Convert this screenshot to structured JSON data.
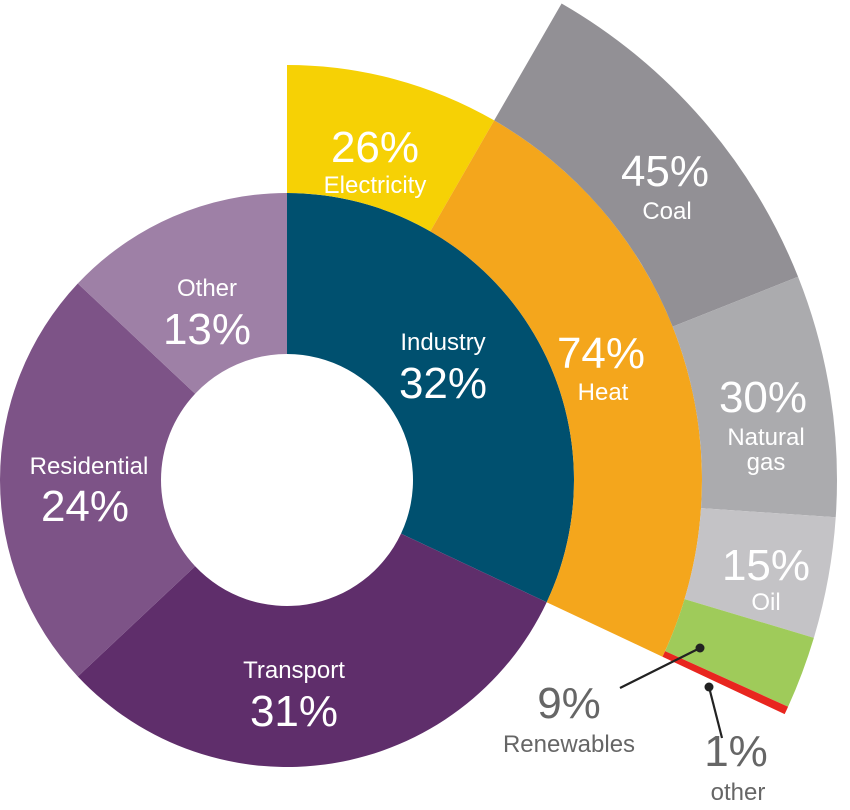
{
  "chart_data": {
    "type": "pie",
    "rings": [
      {
        "ring": "sectors",
        "segments": [
          {
            "key": "industry",
            "name": "Industry",
            "value": 32,
            "pct_label": "32%",
            "color": "#00506f"
          },
          {
            "key": "transport",
            "name": "Transport",
            "value": 31,
            "pct_label": "31%",
            "color": "#5f2e6b"
          },
          {
            "key": "residential",
            "name": "Residential",
            "value": 24,
            "pct_label": "24%",
            "color": "#7d5387"
          },
          {
            "key": "other",
            "name": "Other",
            "value": 13,
            "pct_label": "13%",
            "color": "#9e80a6"
          }
        ]
      },
      {
        "ring": "industry-energy-use",
        "parent": "industry",
        "segments": [
          {
            "key": "electricity",
            "name": "Electricity",
            "value": 26,
            "pct_label": "26%",
            "color": "#f6d105"
          },
          {
            "key": "heat",
            "name": "Heat",
            "value": 74,
            "pct_label": "74%",
            "color": "#f4a61c"
          }
        ]
      },
      {
        "ring": "heat-sources",
        "parent": "heat",
        "segments": [
          {
            "key": "coal",
            "name": "Coal",
            "value": 45,
            "pct_label": "45%",
            "color": "#929095"
          },
          {
            "key": "gas",
            "name": "Natural gas",
            "name_lines": [
              "Natural",
              "gas"
            ],
            "value": 30,
            "pct_label": "30%",
            "color": "#ababae"
          },
          {
            "key": "oil",
            "name": "Oil",
            "value": 15,
            "pct_label": "15%",
            "color": "#c4c3c6"
          },
          {
            "key": "renewables",
            "name": "Renewables",
            "value": 9,
            "pct_label": "9%",
            "color": "#9fcb5a"
          },
          {
            "key": "heatother",
            "name": "other",
            "value": 1,
            "pct_label": "1%",
            "color": "#e8261f"
          }
        ]
      }
    ]
  }
}
